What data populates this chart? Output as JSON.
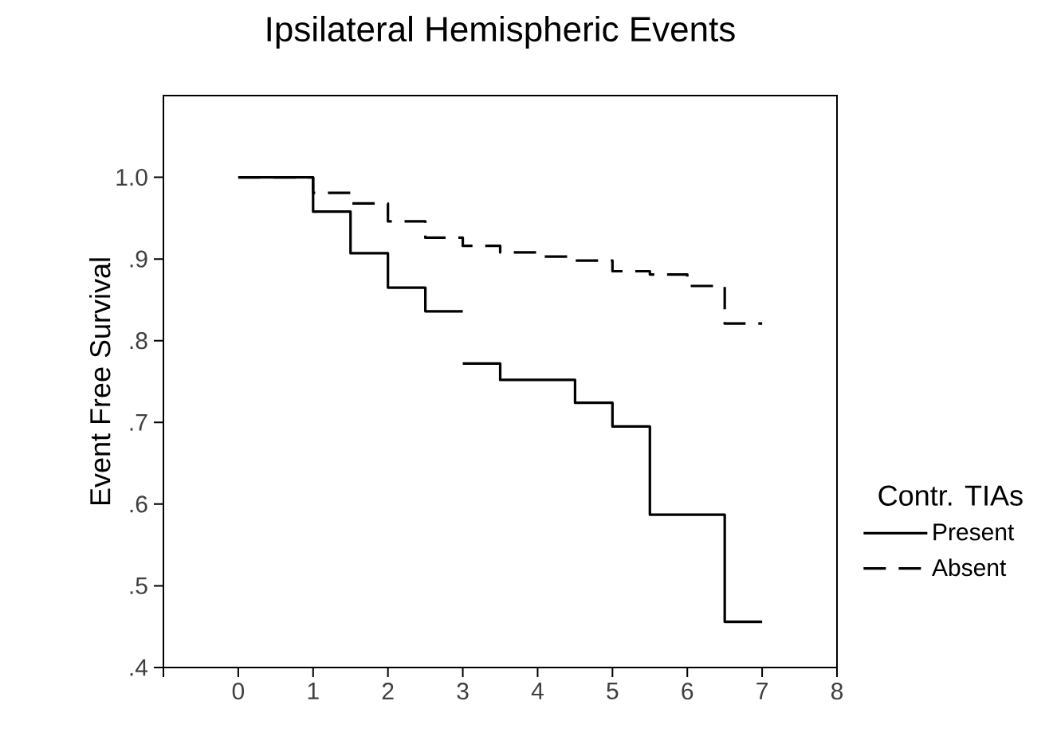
{
  "chart_data": {
    "type": "step",
    "title": "Ipsilateral Hemispheric Events",
    "ylabel": "Event Free Survival",
    "legend_title": "Contr. TIAs",
    "legend": "right",
    "xlim": [
      -1,
      8
    ],
    "ylim": [
      0.4,
      1.1
    ],
    "xticks": [
      {
        "value": -1,
        "label": null
      },
      0,
      1,
      2,
      3,
      4,
      5,
      6,
      7,
      8
    ],
    "yticks": [
      {
        "value": 0.4,
        "label": ".4"
      },
      {
        "value": 0.5,
        "label": ".5"
      },
      {
        "value": 0.6,
        "label": ".6"
      },
      {
        "value": 0.7,
        "label": ".7"
      },
      {
        "value": 0.8,
        "label": ".8"
      },
      {
        "value": 0.9,
        "label": ".9"
      },
      {
        "value": 1.0,
        "label": "1.0"
      }
    ],
    "series": [
      {
        "name": "Present",
        "color": "#000000",
        "line_style": "solid",
        "x": [
          0,
          1,
          1.5,
          2,
          2.5,
          3,
          null,
          3,
          3.5,
          4.5,
          5,
          5.5,
          6.5,
          7
        ],
        "values": [
          1.0,
          0.958,
          0.907,
          0.865,
          0.836,
          0.836,
          null,
          0.772,
          0.752,
          0.724,
          0.695,
          0.587,
          0.456,
          0.456
        ]
      },
      {
        "name": "Absent",
        "color": "#000000",
        "line_style": "dashed",
        "x": [
          0,
          1,
          1.5,
          2,
          2.5,
          3,
          3.5,
          4,
          4.5,
          5,
          5.5,
          6,
          6.5,
          7
        ],
        "values": [
          1.0,
          0.981,
          0.968,
          0.946,
          0.926,
          0.916,
          0.908,
          0.903,
          0.898,
          0.885,
          0.881,
          0.867,
          0.821,
          0.821
        ]
      }
    ]
  }
}
